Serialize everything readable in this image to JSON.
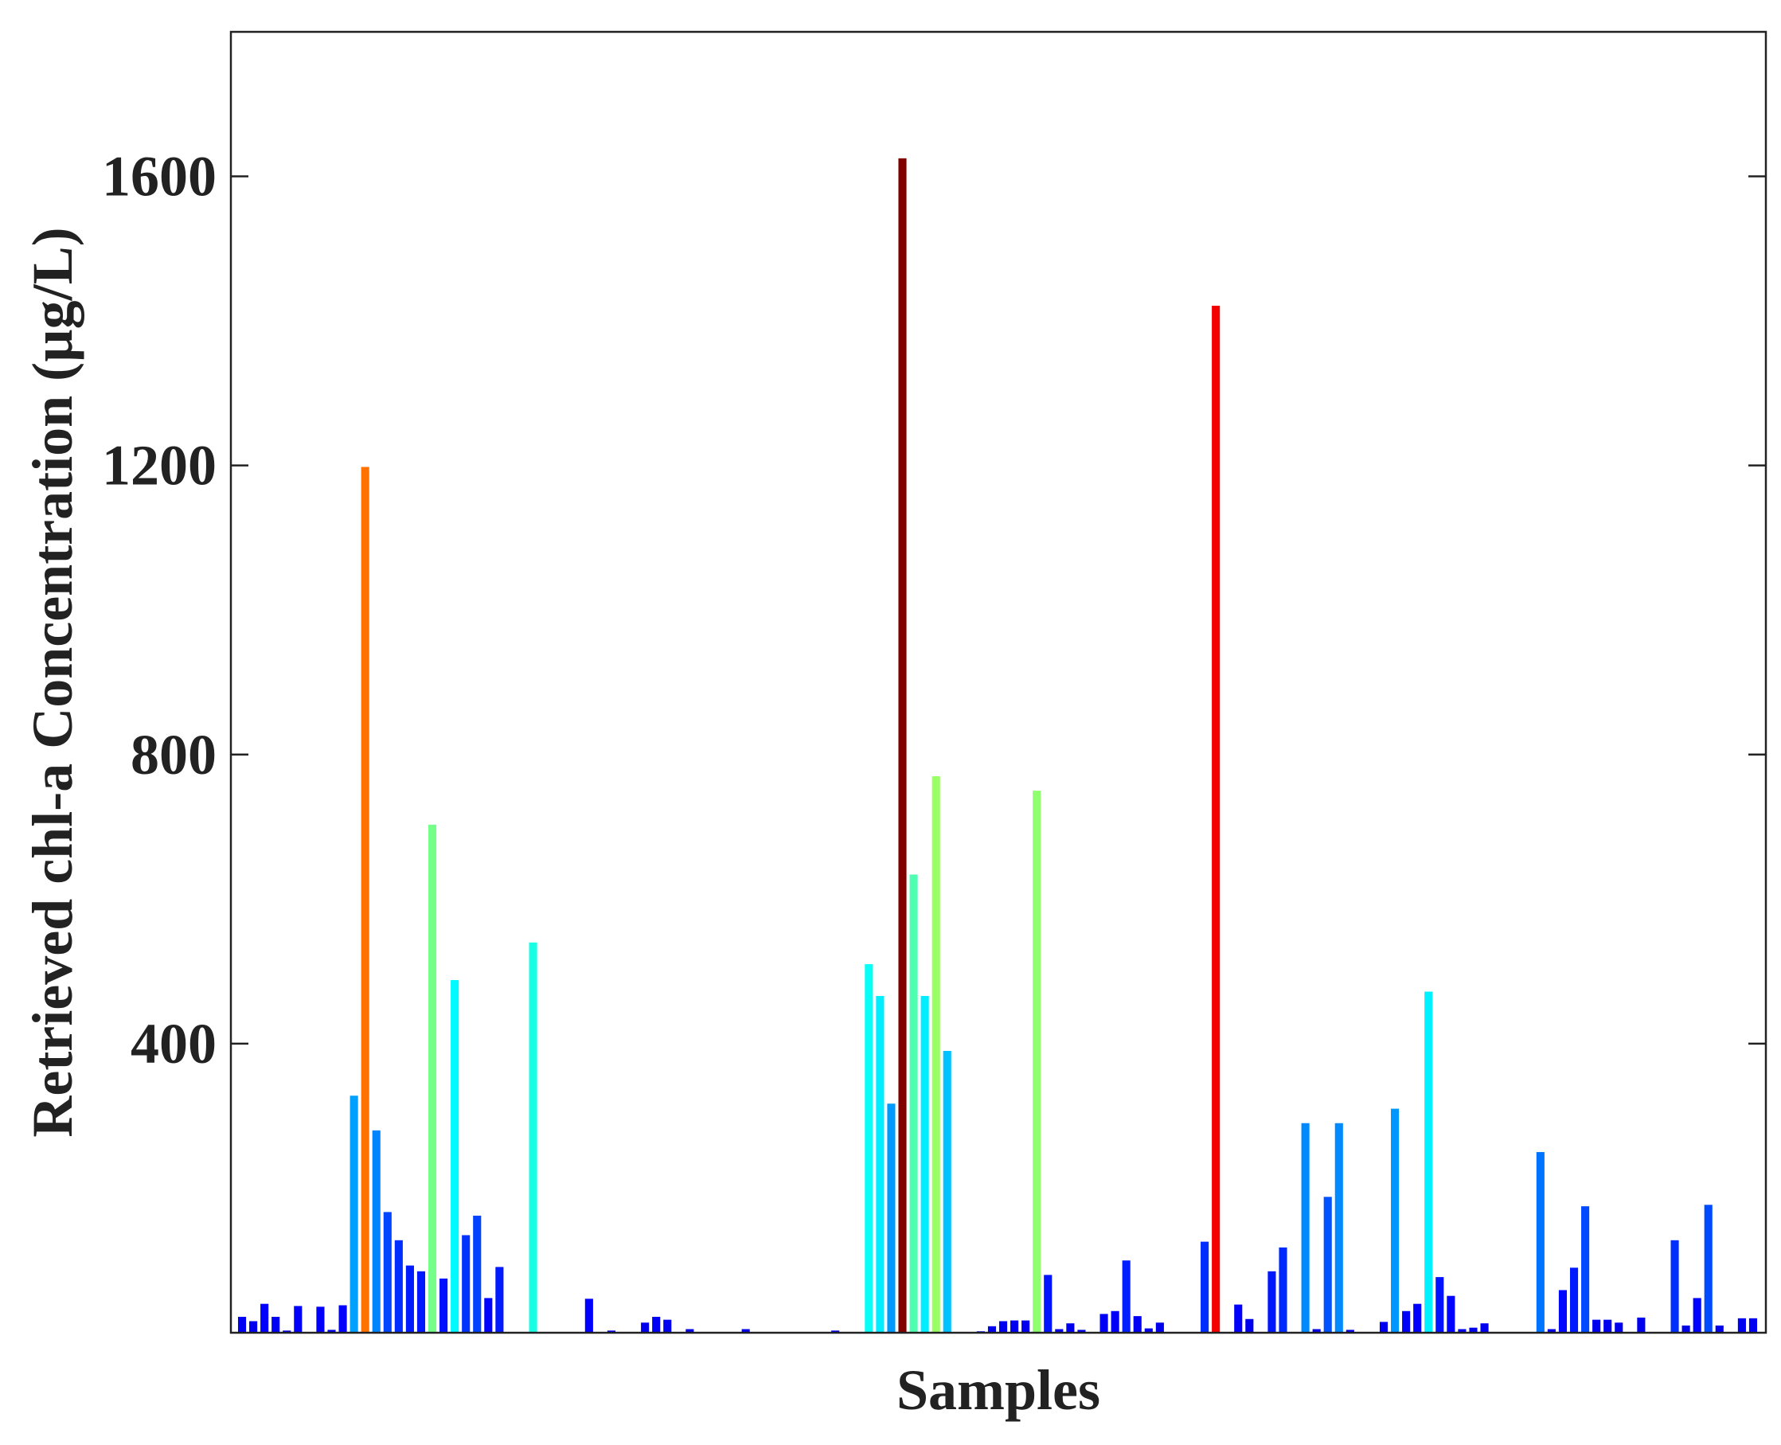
{
  "chart_data": {
    "type": "bar",
    "title": "",
    "xlabel": "Samples",
    "ylabel": "Retrieved chl-a Concentration (µg/L)",
    "ylim": [
      0,
      1800
    ],
    "yticks": [
      400,
      800,
      1200,
      1600
    ],
    "grid": false,
    "legend": "none",
    "colormap": "jet (bar color scales with value)",
    "values": [
      22,
      16,
      40,
      22,
      3,
      37,
      0,
      36,
      4,
      38,
      328,
      1198,
      280,
      167,
      128,
      93,
      85,
      703,
      75,
      488,
      135,
      162,
      48,
      91,
      0,
      0,
      540,
      0,
      0,
      0,
      0,
      47,
      0,
      3,
      0,
      0,
      14,
      22,
      18,
      0,
      5,
      0,
      0,
      0,
      0,
      5,
      0,
      1,
      0,
      0,
      1,
      1,
      0,
      3,
      0,
      0,
      510,
      466,
      317,
      1625,
      634,
      466,
      770,
      390,
      1,
      1,
      2,
      9,
      16,
      17,
      17,
      750,
      80,
      5,
      13,
      4,
      0,
      26,
      30,
      100,
      23,
      6,
      14,
      0,
      0,
      0,
      126,
      1421,
      0,
      39,
      19,
      0,
      85,
      118,
      0,
      290,
      5,
      188,
      290,
      4,
      0,
      0,
      15,
      310,
      30,
      40,
      472,
      77,
      51,
      5,
      7,
      13,
      0,
      0,
      0,
      0,
      250,
      5,
      59,
      90,
      175,
      18,
      18,
      14,
      0,
      21,
      0,
      0,
      128,
      10,
      48,
      177,
      10,
      0,
      20,
      20
    ]
  }
}
